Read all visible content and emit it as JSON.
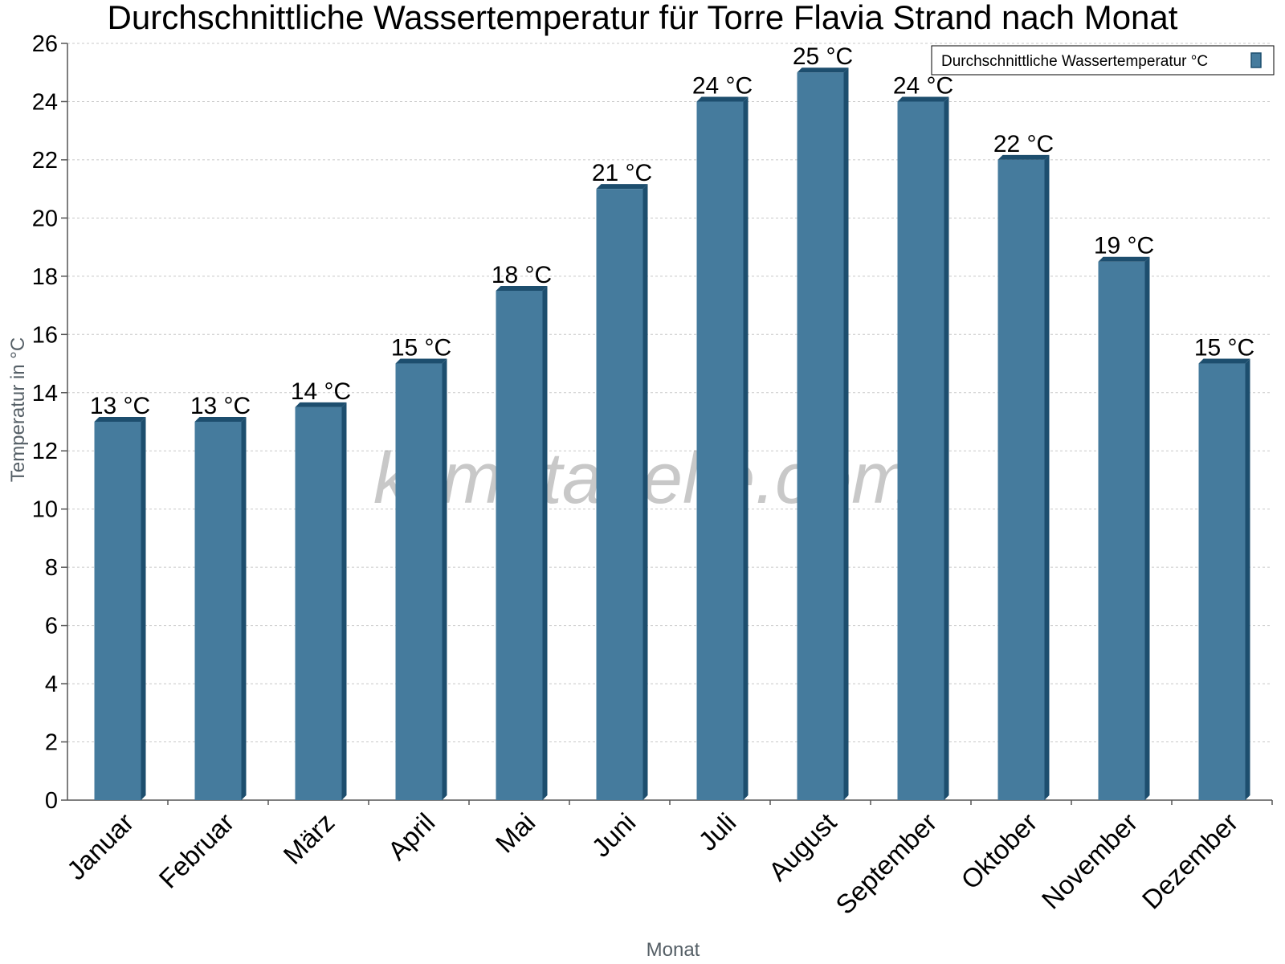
{
  "chart_data": {
    "type": "bar",
    "title": "Durchschnittliche Wassertemperatur für Torre Flavia Strand nach Monat",
    "xlabel": "Monat",
    "ylabel": "Temperatur in °C",
    "categories": [
      "Januar",
      "Februar",
      "März",
      "April",
      "Mai",
      "Juni",
      "Juli",
      "August",
      "September",
      "Oktober",
      "November",
      "Dezember"
    ],
    "series": [
      {
        "name": "Durchschnittliche Wassertemperatur °C",
        "values": [
          13,
          13,
          13.5,
          15,
          17.5,
          21,
          24,
          25,
          24,
          22,
          18.5,
          15
        ],
        "labels": [
          "13 °C",
          "13 °C",
          "14 °C",
          "15 °C",
          "18 °C",
          "21 °C",
          "24 °C",
          "25 °C",
          "24 °C",
          "22 °C",
          "19 °C",
          "15 °C"
        ]
      }
    ],
    "ylim": [
      0,
      26
    ],
    "yticks": [
      0,
      2,
      4,
      6,
      8,
      10,
      12,
      14,
      16,
      18,
      20,
      22,
      24,
      26
    ],
    "grid": true,
    "legend_position": "top-right",
    "watermark": "klimatabelle.com",
    "colors": {
      "bar": "#457b9d",
      "bar_side": "#1d4e6e",
      "grid": "#c8c8c8",
      "axis": "#555555"
    }
  }
}
